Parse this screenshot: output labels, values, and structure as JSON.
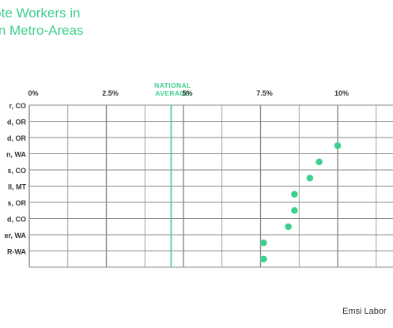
{
  "colors": {
    "accent": "#3ecf8e",
    "grid": "#8a8a8a",
    "text": "#333333"
  },
  "chart_data": {
    "type": "scatter",
    "title_lines": [
      "mote Workers in",
      "tern Metro-Areas"
    ],
    "x_ticks": [
      0,
      2.5,
      5,
      7.5,
      10
    ],
    "x_tick_labels": [
      "0%",
      "2.5%",
      "5%",
      "7.5%",
      "10%"
    ],
    "xlim": [
      0,
      11.5
    ],
    "reference_line": {
      "label_lines": [
        "NATIONAL",
        "AVERAGE"
      ],
      "value": 4.6
    },
    "categories": [
      "r, CO",
      "d, OR",
      "d, OR",
      "n, WA",
      "s, CO",
      "ll, MT",
      "s, OR",
      "d, CO",
      "er, WA",
      "R-WA"
    ],
    "values": [
      null,
      null,
      10.0,
      9.4,
      9.1,
      8.6,
      8.6,
      8.4,
      7.6,
      7.6
    ],
    "grid": true
  },
  "source": "Emsi Labor"
}
